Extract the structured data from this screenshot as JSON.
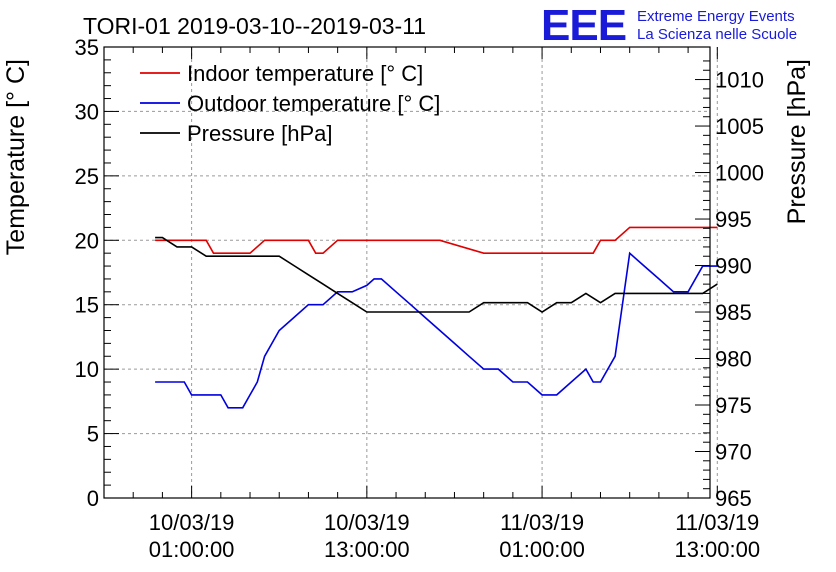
{
  "header": {
    "title": "TORI-01 2019-03-10--2019-03-11",
    "logo_letters": "EEE",
    "logo_line1": "Extreme Energy Events",
    "logo_line2": "La Scienza nelle Scuole"
  },
  "chart_data": {
    "type": "line",
    "title": "TORI-01 2019-03-10--2019-03-11",
    "ylabel": "Temperature [° C]",
    "y2label": "Pressure [hPa]",
    "xlabel": "",
    "grid": true,
    "legend_position": "top-left",
    "x_unit": "hours since 10/03/19 00:00",
    "xlim": [
      -5,
      36.5
    ],
    "ylim": [
      0,
      35
    ],
    "y2lim": [
      965,
      1013.5
    ],
    "x_ticks": [
      {
        "value": 1,
        "line1": "10/03/19",
        "line2": "01:00:00"
      },
      {
        "value": 13,
        "line1": "10/03/19",
        "line2": "13:00:00"
      },
      {
        "value": 25,
        "line1": "11/03/19",
        "line2": "01:00:00"
      },
      {
        "value": 37,
        "line1": "11/03/19",
        "line2": "13:00:00"
      }
    ],
    "y_ticks": [
      0,
      5,
      10,
      15,
      20,
      25,
      30,
      35
    ],
    "y2_ticks": [
      965,
      970,
      975,
      980,
      985,
      990,
      995,
      1000,
      1005,
      1010
    ],
    "series": [
      {
        "name": "Indoor temperature [° C]",
        "axis": "left",
        "color": "#e00000",
        "x": [
          -1.5,
          -0.5,
          2,
          2.5,
          4,
          5,
          6,
          7,
          9,
          9.5,
          10,
          11,
          17,
          18,
          21,
          23,
          28,
          28.5,
          29,
          30,
          31,
          33,
          37
        ],
        "y": [
          20,
          20,
          20,
          19,
          19,
          19,
          20,
          20,
          20,
          19,
          19,
          20,
          20,
          20,
          19,
          19,
          19,
          19,
          20,
          20,
          21,
          21,
          21
        ]
      },
      {
        "name": "Outdoor temperature [° C]",
        "axis": "left",
        "color": "#0000e0",
        "x": [
          -1.5,
          0,
          0.5,
          1,
          2,
          3,
          3.5,
          4.5,
          5,
          5.5,
          6,
          7,
          8,
          9,
          10,
          11,
          12,
          13,
          13.5,
          14,
          15,
          16,
          17,
          18,
          19,
          20,
          21,
          22,
          23,
          24,
          25,
          26,
          27,
          28,
          28.5,
          29,
          30,
          31,
          32,
          33,
          34,
          35,
          36,
          37
        ],
        "y": [
          9,
          9,
          9,
          8,
          8,
          8,
          7,
          7,
          8,
          9,
          11,
          13,
          14,
          15,
          15,
          16,
          16,
          16.5,
          17,
          17,
          16,
          15,
          14,
          13,
          12,
          11,
          10,
          10,
          9,
          9,
          8,
          8,
          9,
          10,
          9,
          9,
          11,
          19,
          18,
          17,
          16,
          16,
          18,
          18
        ]
      },
      {
        "name": "Pressure [hPa]",
        "axis": "right",
        "color": "#000000",
        "x": [
          -1.5,
          -1,
          0,
          1,
          2,
          3,
          4,
          5,
          6,
          7,
          8,
          9,
          10,
          11,
          12,
          13,
          14,
          15,
          16,
          17,
          18,
          19,
          20,
          21,
          22,
          23,
          24,
          25,
          26,
          27,
          28,
          29,
          30,
          31,
          32,
          33,
          34,
          35,
          36,
          37
        ],
        "y": [
          993,
          993,
          992,
          992,
          991,
          991,
          991,
          991,
          991,
          991,
          990,
          989,
          988,
          987,
          986,
          985,
          985,
          985,
          985,
          985,
          985,
          985,
          985,
          986,
          986,
          986,
          986,
          985,
          986,
          986,
          987,
          986,
          987,
          987,
          987,
          987,
          987,
          987,
          987,
          988
        ]
      }
    ]
  }
}
